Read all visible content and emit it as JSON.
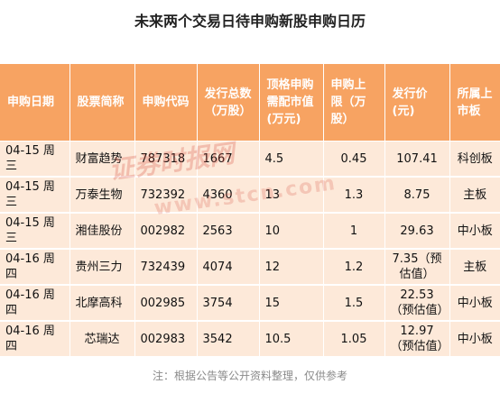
{
  "title": "未来两个交易日待申购新股申购日历",
  "table": {
    "headers": [
      "申购日期",
      "股票简称",
      "申购代码",
      "发行总数（万股）",
      "顶格申购需配市值(万元)",
      "申购上限（万股）",
      "发行价(元)",
      "所属上市板"
    ],
    "rows": [
      [
        "04-15 周三",
        "财富趋势",
        "787318",
        "1667",
        "4.5",
        "0.45",
        "107.41",
        "科创板"
      ],
      [
        "04-15 周三",
        "万泰生物",
        "732392",
        "4360",
        "13",
        "1.3",
        "8.75",
        "主板"
      ],
      [
        "04-15 周三",
        "湘佳股份",
        "002982",
        "2563",
        "10",
        "1",
        "29.63",
        "中小板"
      ],
      [
        "04-16 周四",
        "贵州三力",
        "732439",
        "4074",
        "12",
        "1.2",
        "7.35（预估值）",
        "主板"
      ],
      [
        "04-16 周四",
        "北摩高科",
        "002985",
        "3754",
        "15",
        "1.5",
        "22.53（预估值）",
        "中小板"
      ],
      [
        "04-16 周四",
        "芯瑞达",
        "002983",
        "3542",
        "10.5",
        "1.05",
        "12.97（预估值）",
        "中小板"
      ]
    ]
  },
  "watermark": {
    "text": "证券时报网",
    "url": "www.stcn.com"
  },
  "note": "注：根据公告等公开资料整理，仅供参考",
  "colors": {
    "header_bg": "#f7a362",
    "row_bg": "#fde9d9",
    "watermark": "#d74b3c"
  }
}
